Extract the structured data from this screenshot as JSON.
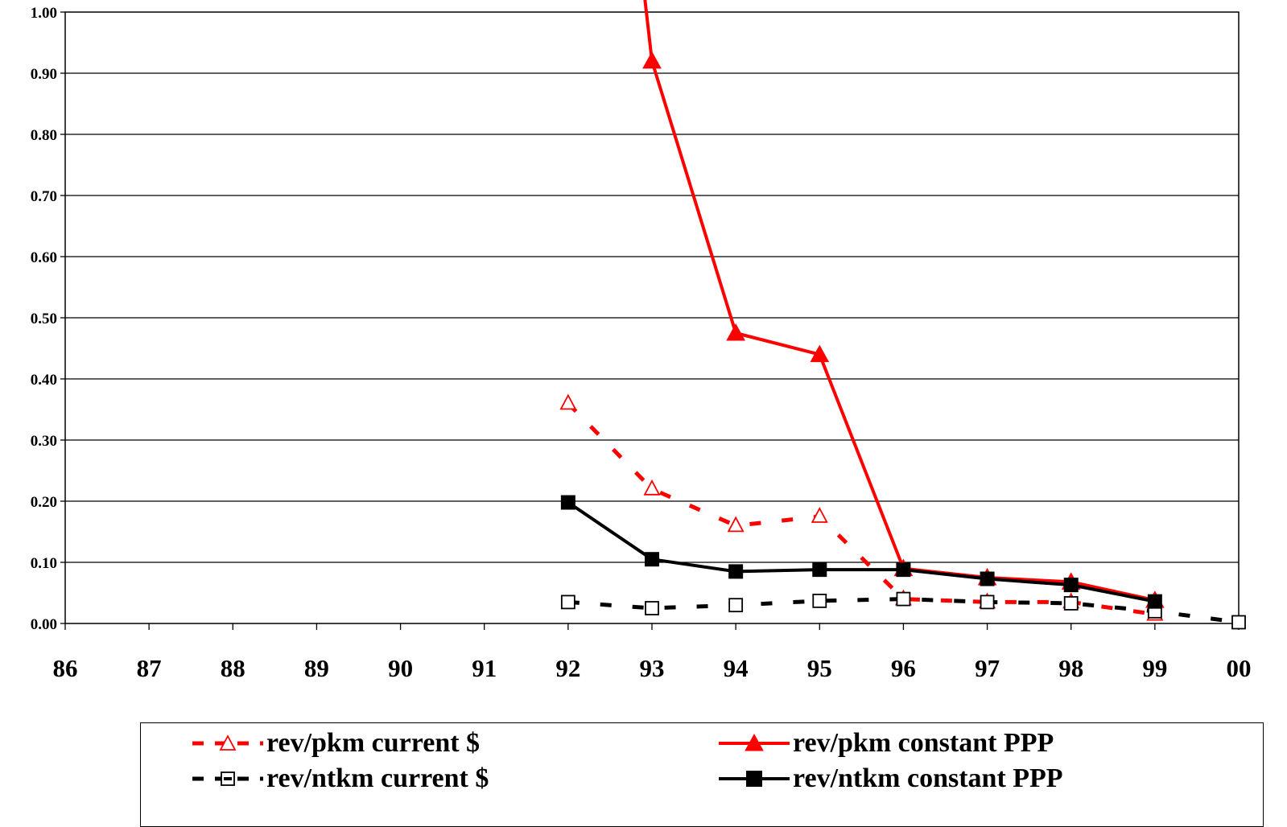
{
  "chart_data": {
    "type": "line",
    "x": [
      "86",
      "87",
      "88",
      "89",
      "90",
      "91",
      "92",
      "93",
      "94",
      "95",
      "96",
      "97",
      "98",
      "99",
      "00"
    ],
    "ylim": [
      0,
      1.0
    ],
    "yticks": [
      "0.00",
      "0.10",
      "0.20",
      "0.30",
      "0.40",
      "0.50",
      "0.60",
      "0.70",
      "0.80",
      "0.90",
      "1.00"
    ],
    "grid": true,
    "legend_position": "bottom",
    "series": [
      {
        "name": "rev/pkm current $",
        "color": "#ff0000",
        "style": "dashed",
        "marker": "open-triangle",
        "values": [
          null,
          null,
          null,
          null,
          null,
          null,
          0.36,
          0.22,
          0.16,
          0.175,
          0.04,
          0.035,
          0.035,
          0.015,
          null
        ]
      },
      {
        "name": "rev/pkm constant PPP",
        "color": "#ff0000",
        "style": "solid",
        "marker": "filled-triangle",
        "values": [
          null,
          null,
          null,
          null,
          null,
          null,
          null,
          0.92,
          0.475,
          0.44,
          0.09,
          0.075,
          0.068,
          0.038,
          null
        ],
        "offscale_start": {
          "from_x": "92.9",
          "value": 1.04
        }
      },
      {
        "name": "rev/ntkm current $",
        "color": "#000000",
        "style": "dashed",
        "marker": "open-square",
        "values": [
          null,
          null,
          null,
          null,
          null,
          null,
          0.035,
          0.025,
          0.03,
          0.037,
          0.04,
          0.035,
          0.033,
          0.02,
          0.002
        ]
      },
      {
        "name": "rev/ntkm constant PPP",
        "color": "#000000",
        "style": "solid",
        "marker": "filled-square",
        "values": [
          null,
          null,
          null,
          null,
          null,
          null,
          0.198,
          0.105,
          0.085,
          0.088,
          0.088,
          0.073,
          0.063,
          0.036,
          null
        ]
      }
    ]
  }
}
